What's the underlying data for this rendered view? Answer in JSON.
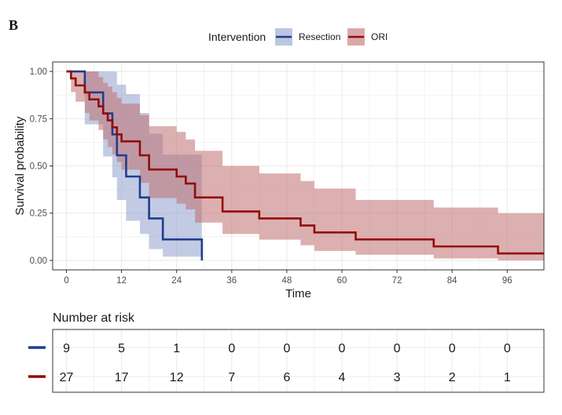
{
  "panel_label": "B",
  "colors": {
    "resection": "#1f3d8f",
    "resection_ci": "#8fa0cc",
    "ori": "#930b0b",
    "ori_ci": "#c0706f",
    "grid": "#ebebeb",
    "frame": "#333333",
    "text": "#1a1a1a"
  },
  "chart_data": {
    "type": "line",
    "subtype": "kaplan-meier survival curve with confidence bands",
    "title": "",
    "xlabel": "Time",
    "ylabel": "Survival probability",
    "xlim": [
      -3,
      104
    ],
    "ylim": [
      -0.05,
      1.05
    ],
    "x_ticks": [
      0,
      12,
      24,
      36,
      48,
      60,
      72,
      84,
      96
    ],
    "x_tick_labels": [
      "0",
      "12",
      "24",
      "36",
      "48",
      "60",
      "72",
      "84",
      "96"
    ],
    "y_ticks": [
      0,
      0.25,
      0.5,
      0.75,
      1.0
    ],
    "y_tick_labels": [
      "0.00",
      "0.25",
      "0.50",
      "0.75",
      "1.00"
    ],
    "grid": true,
    "legend": {
      "title": "Intervention",
      "position": "top-center",
      "entries": [
        "Resection",
        "ORI"
      ]
    },
    "series": [
      {
        "name": "Resection",
        "color": "#1f3d8f",
        "ci_color": "#8fa0cc",
        "times": [
          0,
          4,
          8,
          10,
          11,
          13,
          16,
          18,
          21,
          29.5
        ],
        "surv": [
          1.0,
          0.889,
          0.778,
          0.667,
          0.556,
          0.444,
          0.333,
          0.222,
          0.111,
          0.0
        ],
        "ci_lower": [
          1.0,
          0.72,
          0.55,
          0.44,
          0.32,
          0.21,
          0.14,
          0.06,
          0.02,
          0.0
        ],
        "ci_upper": [
          1.0,
          1.0,
          1.0,
          1.0,
          0.93,
          0.88,
          0.78,
          0.67,
          0.56,
          0.56
        ],
        "end_time": 29.5
      },
      {
        "name": "ORI",
        "color": "#930b0b",
        "ci_color": "#c0706f",
        "times": [
          0,
          1,
          2,
          4,
          5,
          7,
          8,
          9,
          10,
          11,
          12,
          16,
          18,
          24,
          26,
          28,
          34,
          42,
          51,
          54,
          63,
          80,
          94
        ],
        "surv": [
          1.0,
          0.963,
          0.926,
          0.889,
          0.852,
          0.815,
          0.778,
          0.741,
          0.704,
          0.667,
          0.63,
          0.556,
          0.481,
          0.444,
          0.407,
          0.333,
          0.259,
          0.222,
          0.185,
          0.148,
          0.111,
          0.074,
          0.037
        ],
        "ci_lower": [
          1.0,
          0.89,
          0.84,
          0.78,
          0.74,
          0.69,
          0.64,
          0.6,
          0.56,
          0.52,
          0.48,
          0.41,
          0.33,
          0.3,
          0.27,
          0.2,
          0.14,
          0.11,
          0.08,
          0.05,
          0.03,
          0.01,
          0.0
        ],
        "ci_upper": [
          1.0,
          1.0,
          1.0,
          1.0,
          1.0,
          0.97,
          0.94,
          0.92,
          0.89,
          0.86,
          0.83,
          0.77,
          0.71,
          0.68,
          0.64,
          0.58,
          0.5,
          0.46,
          0.42,
          0.38,
          0.32,
          0.28,
          0.25
        ],
        "end_time": 104
      }
    ]
  },
  "risk_table": {
    "title": "Number at risk",
    "times": [
      0,
      12,
      24,
      36,
      48,
      60,
      72,
      84,
      96
    ],
    "rows": [
      {
        "name": "Resection",
        "color": "#1f3d8f",
        "values": [
          "9",
          "5",
          "1",
          "0",
          "0",
          "0",
          "0",
          "0",
          "0"
        ]
      },
      {
        "name": "ORI",
        "color": "#930b0b",
        "values": [
          "27",
          "17",
          "12",
          "7",
          "6",
          "4",
          "3",
          "2",
          "1"
        ]
      }
    ]
  }
}
